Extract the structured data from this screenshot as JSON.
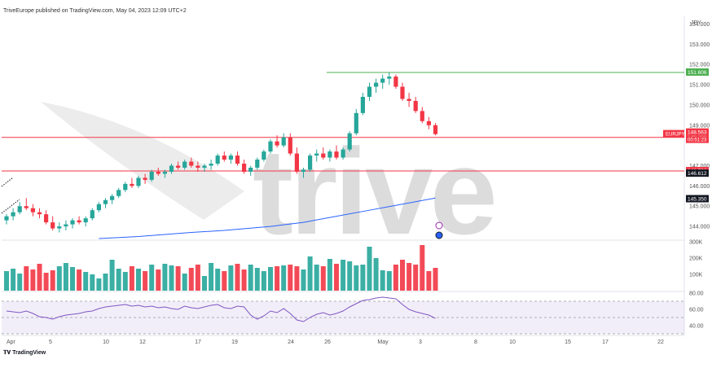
{
  "header": {
    "published": "TriveEurope published on TradingView.com, May 04, 2023 12:09 UTC+2"
  },
  "footer": {
    "brand": "TradingView"
  },
  "watermark": "trive",
  "chart_data": {
    "type": "candlestick",
    "symbol": "EURJPY",
    "currency": "JPY",
    "x_tick_labels": [
      "Apr",
      "5",
      "10",
      "12",
      "17",
      "19",
      "24",
      "26",
      "May",
      "3",
      "8",
      "10",
      "15",
      "17",
      "22"
    ],
    "price_axis": {
      "ylim": [
        143.4,
        154.3
      ],
      "ticks": [
        "154.000",
        "153.000",
        "152.000",
        "151.000",
        "150.000",
        "149.000",
        "147.000",
        "146.000",
        "145.000",
        "144.000"
      ]
    },
    "horizontal_lines": [
      {
        "price": 151.606,
        "label": "151.606",
        "color": "#4caf50"
      },
      {
        "price": 148.398,
        "label": "148.398",
        "color": "#f23645"
      },
      {
        "price": 146.736,
        "label": "146.736",
        "color": "#f23645"
      }
    ],
    "price_badges": [
      {
        "price": 148.563,
        "label": "148.563",
        "color": "#f23645"
      },
      {
        "price": 146.612,
        "label": "146.612",
        "color": "#131722"
      },
      {
        "price": 145.35,
        "label": "145.350",
        "color": "#131722"
      }
    ],
    "symbol_badge": {
      "label": "EURJPY",
      "countdown": "00:51:23",
      "color": "#f23645"
    },
    "candles": [
      [
        144.3,
        144.6,
        144.1,
        144.5
      ],
      [
        144.5,
        144.9,
        144.3,
        144.7
      ],
      [
        144.7,
        145.2,
        144.6,
        145.0
      ],
      [
        145.0,
        145.4,
        144.8,
        144.9
      ],
      [
        144.9,
        145.1,
        144.5,
        144.7
      ],
      [
        144.7,
        144.9,
        144.4,
        144.6
      ],
      [
        144.6,
        144.8,
        144.1,
        144.2
      ],
      [
        144.2,
        144.5,
        143.8,
        143.9
      ],
      [
        143.9,
        144.2,
        143.7,
        144.0
      ],
      [
        144.0,
        144.3,
        143.8,
        144.1
      ],
      [
        144.1,
        144.4,
        143.9,
        144.3
      ],
      [
        144.3,
        144.5,
        144.1,
        144.2
      ],
      [
        144.2,
        144.5,
        144.0,
        144.4
      ],
      [
        144.4,
        144.9,
        144.3,
        144.8
      ],
      [
        144.8,
        145.2,
        144.7,
        145.1
      ],
      [
        145.1,
        145.4,
        144.9,
        145.3
      ],
      [
        145.3,
        145.6,
        145.1,
        145.5
      ],
      [
        145.5,
        145.9,
        145.4,
        145.8
      ],
      [
        145.8,
        146.2,
        145.7,
        146.1
      ],
      [
        146.1,
        146.4,
        145.9,
        146.0
      ],
      [
        146.0,
        146.5,
        145.9,
        146.4
      ],
      [
        146.4,
        146.6,
        146.1,
        146.3
      ],
      [
        146.3,
        146.8,
        146.2,
        146.7
      ],
      [
        146.7,
        146.9,
        146.5,
        146.6
      ],
      [
        146.6,
        146.8,
        146.4,
        146.7
      ],
      [
        146.7,
        147.1,
        146.6,
        147.0
      ],
      [
        147.0,
        147.2,
        146.8,
        146.9
      ],
      [
        146.9,
        147.3,
        146.8,
        147.2
      ],
      [
        147.2,
        147.4,
        146.9,
        147.0
      ],
      [
        147.0,
        147.2,
        146.7,
        146.9
      ],
      [
        146.9,
        147.1,
        146.7,
        147.0
      ],
      [
        147.0,
        147.3,
        146.8,
        147.1
      ],
      [
        147.1,
        147.6,
        147.0,
        147.5
      ],
      [
        147.5,
        147.7,
        147.2,
        147.3
      ],
      [
        147.3,
        147.6,
        147.1,
        147.5
      ],
      [
        147.5,
        147.7,
        147.0,
        147.1
      ],
      [
        147.1,
        147.3,
        146.6,
        146.7
      ],
      [
        146.7,
        147.0,
        146.5,
        146.9
      ],
      [
        146.9,
        147.4,
        146.8,
        147.3
      ],
      [
        147.3,
        147.8,
        147.2,
        147.7
      ],
      [
        147.7,
        148.3,
        147.6,
        148.2
      ],
      [
        148.2,
        148.5,
        147.9,
        148.0
      ],
      [
        148.0,
        148.6,
        147.9,
        148.4
      ],
      [
        148.4,
        148.6,
        147.5,
        147.6
      ],
      [
        147.6,
        147.9,
        146.6,
        146.7
      ],
      [
        146.7,
        146.9,
        146.4,
        146.8
      ],
      [
        146.8,
        147.6,
        146.7,
        147.5
      ],
      [
        147.5,
        147.8,
        147.2,
        147.6
      ],
      [
        147.6,
        147.9,
        147.3,
        147.4
      ],
      [
        147.4,
        147.8,
        147.2,
        147.7
      ],
      [
        147.7,
        148.0,
        147.3,
        147.4
      ],
      [
        147.4,
        147.9,
        147.3,
        147.8
      ],
      [
        147.8,
        148.7,
        147.7,
        148.6
      ],
      [
        148.6,
        149.8,
        148.5,
        149.6
      ],
      [
        149.6,
        150.6,
        149.5,
        150.4
      ],
      [
        150.4,
        151.1,
        150.2,
        150.9
      ],
      [
        150.9,
        151.3,
        150.6,
        151.1
      ],
      [
        151.1,
        151.5,
        150.8,
        151.3
      ],
      [
        151.3,
        151.6,
        151.0,
        151.4
      ],
      [
        151.4,
        151.5,
        150.8,
        150.9
      ],
      [
        150.9,
        151.1,
        150.2,
        150.3
      ],
      [
        150.3,
        150.6,
        149.9,
        150.2
      ],
      [
        150.2,
        150.4,
        149.6,
        149.7
      ],
      [
        149.7,
        149.9,
        149.1,
        149.2
      ],
      [
        149.2,
        149.4,
        148.8,
        149.0
      ],
      [
        149.0,
        149.1,
        148.5,
        148.56
      ]
    ],
    "moving_average": [
      [
        14,
        143.4
      ],
      [
        20,
        143.5
      ],
      [
        28,
        143.7
      ],
      [
        33,
        143.8
      ],
      [
        40,
        144.0
      ],
      [
        45,
        144.2
      ],
      [
        50,
        144.5
      ],
      [
        55,
        144.8
      ],
      [
        60,
        145.1
      ],
      [
        65,
        145.4
      ]
    ],
    "volume": {
      "ylim": [
        0,
        300000
      ],
      "ticks": [
        "300K",
        "200K",
        "100K"
      ],
      "values": [
        120000,
        135000,
        105000,
        150000,
        130000,
        165000,
        110000,
        125000,
        150000,
        170000,
        145000,
        130000,
        115000,
        100000,
        75000,
        105000,
        190000,
        135000,
        115000,
        150000,
        135000,
        120000,
        160000,
        130000,
        165000,
        155000,
        150000,
        105000,
        140000,
        160000,
        90000,
        170000,
        135000,
        120000,
        155000,
        165000,
        130000,
        160000,
        140000,
        120000,
        145000,
        150000,
        155000,
        160000,
        150000,
        130000,
        210000,
        160000,
        150000,
        195000,
        165000,
        190000,
        180000,
        155000,
        160000,
        270000,
        200000,
        125000,
        120000,
        160000,
        190000,
        170000,
        160000,
        280000,
        120000,
        140000
      ]
    },
    "rsi": {
      "ylim": [
        30,
        80
      ],
      "ticks": [
        "80.00",
        "60.00",
        "40.00"
      ],
      "band": [
        70,
        30
      ],
      "mid": 50,
      "values": [
        58,
        57,
        56,
        58,
        55,
        51,
        50,
        48,
        51,
        53,
        54,
        55,
        57,
        58,
        61,
        63,
        64,
        65,
        66,
        64,
        65,
        63,
        64,
        62,
        63,
        61,
        60,
        64,
        62,
        61,
        63,
        65,
        66,
        62,
        61,
        64,
        63,
        53,
        48,
        52,
        58,
        56,
        61,
        55,
        47,
        45,
        50,
        54,
        56,
        53,
        55,
        58,
        63,
        67,
        71,
        72,
        74,
        75,
        74,
        73,
        66,
        60,
        57,
        55,
        53,
        49
      ]
    }
  }
}
